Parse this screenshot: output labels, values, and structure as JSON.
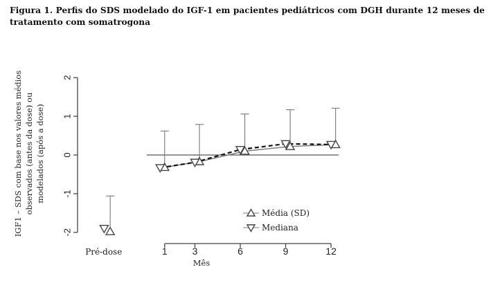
{
  "figure": {
    "title": "Figura 1. Perfis do SDS modelado do IGF-1 em pacientes pediátricos com DGH durante 12 meses de tratamento com somatrogona"
  },
  "chart_data": {
    "type": "line",
    "xlabel": "Mês",
    "ylabel_lines": [
      "IGF1 – SDS com base nos valores médios",
      "observados (antes da dose) ou",
      "modelados (após a dose)"
    ],
    "x_categories": [
      "Pré-dose",
      "1",
      "3",
      "6",
      "9",
      "12"
    ],
    "x_numeric_ticks": [
      1,
      3,
      6,
      9,
      12
    ],
    "xlim": [
      -4.3,
      12.5
    ],
    "ylim": [
      -2.2,
      2.2
    ],
    "yticks": [
      -2,
      -1,
      0,
      1,
      2
    ],
    "reference_line_y": 0,
    "series": [
      {
        "name": "Média (SD)",
        "marker": "triangle-up",
        "line_style": "solid",
        "x": [
          -2.6,
          1,
          3.3,
          6.3,
          9.3,
          12.3
        ],
        "y": [
          -1.98,
          -0.32,
          -0.17,
          0.1,
          0.22,
          0.27
        ],
        "sd_upper": [
          -1.06,
          0.62,
          0.79,
          1.06,
          1.17,
          1.21
        ],
        "connected_from_index": 1
      },
      {
        "name": "Mediana",
        "marker": "triangle-down",
        "line_style": "dashed",
        "x": [
          -3.0,
          0.7,
          3.0,
          6.0,
          9.0,
          12.0
        ],
        "y": [
          -1.9,
          -0.33,
          -0.19,
          0.14,
          0.29,
          0.27
        ],
        "connected_from_index": 1
      }
    ],
    "legend": {
      "placement": "bottom-right"
    }
  }
}
